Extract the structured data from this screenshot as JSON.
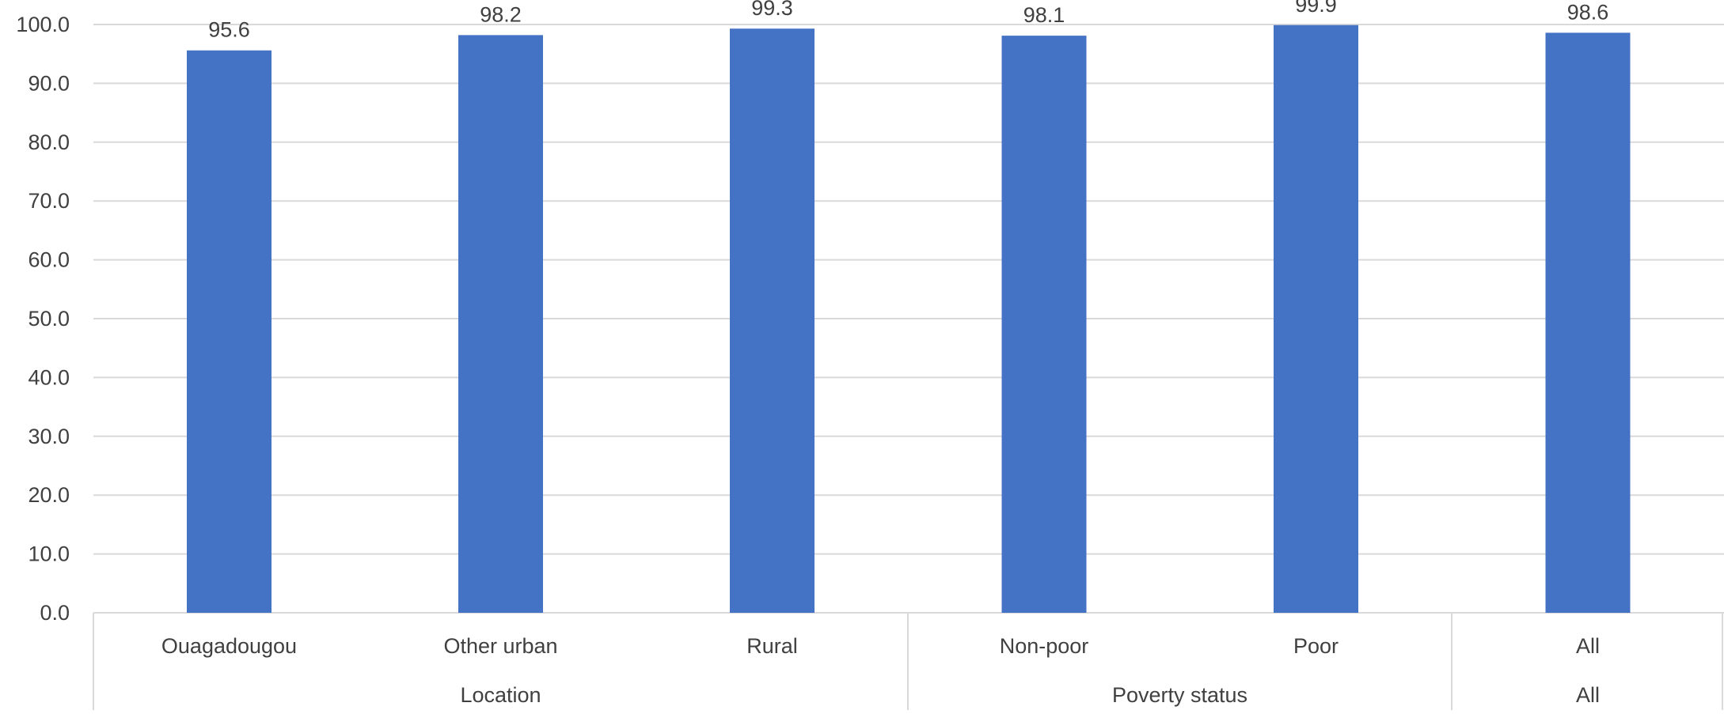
{
  "chart_data": {
    "type": "bar",
    "title": "",
    "xlabel": "",
    "ylabel": "",
    "ylim": [
      0,
      100
    ],
    "yticks": [
      "0.0",
      "10.0",
      "20.0",
      "30.0",
      "40.0",
      "50.0",
      "60.0",
      "70.0",
      "80.0",
      "90.0",
      "100.0"
    ],
    "grid": true,
    "legend": "none",
    "categories": [
      "Ouagadougou",
      "Other urban",
      "Rural",
      "Non-poor",
      "Poor",
      "All"
    ],
    "values": [
      95.6,
      98.2,
      99.3,
      98.1,
      99.9,
      98.6
    ],
    "data_labels": [
      "95.6",
      "98.2",
      "99.3",
      "98.1",
      "99.9",
      "98.6"
    ],
    "groups": [
      {
        "label": "Location",
        "categories": [
          "Ouagadougou",
          "Other urban",
          "Rural"
        ]
      },
      {
        "label": "Poverty status",
        "categories": [
          "Non-poor",
          "Poor"
        ]
      },
      {
        "label": "All",
        "categories": [
          ""
        ]
      }
    ],
    "colors": {
      "bar": "#4472C4",
      "grid": "#D9D9D9",
      "axis_text": "#404040"
    }
  }
}
